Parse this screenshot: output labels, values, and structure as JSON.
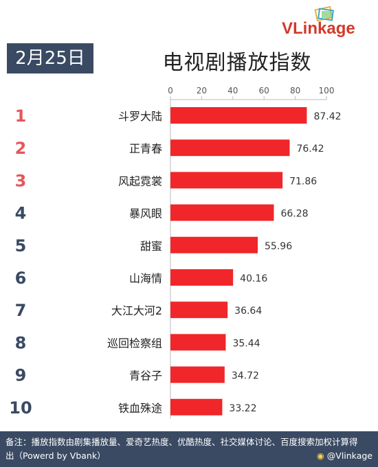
{
  "header": {
    "date": "2月25日",
    "title": "电视剧播放指数",
    "logo_text": "VLinkage"
  },
  "colors": {
    "bar": "#f0262a",
    "rank_top": "#e8555b",
    "rank_rest": "#3a4a63",
    "badge": "#3a4a63"
  },
  "chart_data": {
    "type": "bar",
    "orientation": "horizontal",
    "title": "电视剧播放指数",
    "categories": [
      "斗罗大陆",
      "正青春",
      "风起霓裳",
      "暴风眼",
      "甜蜜",
      "山海情",
      "大江大河2",
      "巡回检察组",
      "青谷子",
      "铁血殊途"
    ],
    "ranks": [
      "1",
      "2",
      "3",
      "4",
      "5",
      "6",
      "7",
      "8",
      "9",
      "10"
    ],
    "values": [
      87.42,
      76.42,
      71.86,
      66.28,
      55.96,
      40.16,
      36.64,
      35.44,
      34.72,
      33.22
    ],
    "value_labels": [
      "87.42",
      "76.42",
      "71.86",
      "66.28",
      "55.96",
      "40.16",
      "36.64",
      "35.44",
      "34.72",
      "33.22"
    ],
    "xlim": [
      0,
      100
    ],
    "xticks": [
      "0",
      "20",
      "40",
      "60",
      "80",
      "100"
    ],
    "axis_position": "top",
    "grid": false
  },
  "footer": {
    "note": "备注：播放指数由剧集播放量、爱奇艺热度、优酷热度、社交媒体讨论、百度搜索加权计算得出（Powerd by Vbank）",
    "watermark": "@Vlinkage"
  }
}
